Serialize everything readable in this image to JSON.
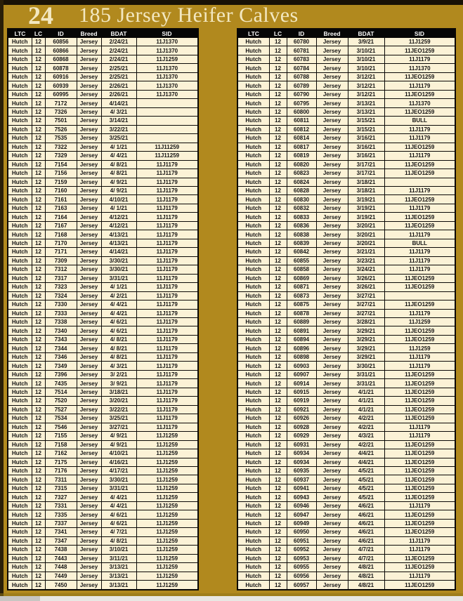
{
  "page": {
    "number": "24",
    "title": "185 Jersey Heifer Calves"
  },
  "columns": [
    "LTC",
    "LC",
    "ID",
    "Breed",
    "BDAT",
    "SID"
  ],
  "colors": {
    "background_gold": "#B1891E",
    "cell_cream": "#FBF2D6",
    "border_black": "#0A0806",
    "header_bg": "#060606",
    "header_text": "#F8F8F8",
    "title_text": "#F3E8C1"
  },
  "left_table": {
    "rows": [
      [
        "Hutch",
        "12",
        "60856",
        "Jersey",
        "2/24/21",
        "11J1370"
      ],
      [
        "Hutch",
        "12",
        "60866",
        "Jersey",
        "2/24/21",
        "11J1370"
      ],
      [
        "Hutch",
        "12",
        "60868",
        "Jersey",
        "2/24/21",
        "11J1259"
      ],
      [
        "Hutch",
        "12",
        "60878",
        "Jersey",
        "2/25/21",
        "11J1370"
      ],
      [
        "Hutch",
        "12",
        "60916",
        "Jersey",
        "2/25/21",
        "11J1370"
      ],
      [
        "Hutch",
        "12",
        "60939",
        "Jersey",
        "2/26/21",
        "11J1370"
      ],
      [
        "Hutch",
        "12",
        "60995",
        "Jersey",
        "2/26/21",
        "11J1370"
      ],
      [
        "Hutch",
        "12",
        "7172",
        "Jersey",
        "4/14/21",
        ""
      ],
      [
        "Hutch",
        "12",
        "7326",
        "Jersey",
        "4/ 3/21",
        ""
      ],
      [
        "Hutch",
        "12",
        "7501",
        "Jersey",
        "3/14/21",
        ""
      ],
      [
        "Hutch",
        "12",
        "7526",
        "Jersey",
        "3/22/21",
        ""
      ],
      [
        "Hutch",
        "12",
        "7535",
        "Jersey",
        "3/25/21",
        ""
      ],
      [
        "Hutch",
        "12",
        "7322",
        "Jersey",
        "4/ 1/21",
        "11J11259"
      ],
      [
        "Hutch",
        "12",
        "7329",
        "Jersey",
        "4/ 4/21",
        "11J11259"
      ],
      [
        "Hutch",
        "12",
        "7154",
        "Jersey",
        "4/ 8/21",
        "11J1179"
      ],
      [
        "Hutch",
        "12",
        "7156",
        "Jersey",
        "4/ 8/21",
        "11J1179"
      ],
      [
        "Hutch",
        "12",
        "7159",
        "Jersey",
        "4/ 9/21",
        "11J1179"
      ],
      [
        "Hutch",
        "12",
        "7160",
        "Jersey",
        "4/ 9/21",
        "11J1179"
      ],
      [
        "Hutch",
        "12",
        "7161",
        "Jersey",
        "4/10/21",
        "11J1179"
      ],
      [
        "Hutch",
        "12",
        "7163",
        "Jersey",
        "4/ 1/21",
        "11J1179"
      ],
      [
        "Hutch",
        "12",
        "7164",
        "Jersey",
        "4/12/21",
        "11J1179"
      ],
      [
        "Hutch",
        "12",
        "7167",
        "Jersey",
        "4/12/21",
        "11J1179"
      ],
      [
        "Hutch",
        "12",
        "7168",
        "Jersey",
        "4/13/21",
        "11J1179"
      ],
      [
        "Hutch",
        "12",
        "7170",
        "Jersey",
        "4/13/21",
        "11J1179"
      ],
      [
        "Hutch",
        "12",
        "7171",
        "Jersey",
        "4/14/21",
        "11J1179"
      ],
      [
        "Hutch",
        "12",
        "7309",
        "Jersey",
        "3/30/21",
        "11J1179"
      ],
      [
        "Hutch",
        "12",
        "7312",
        "Jersey",
        "3/30/21",
        "11J1179"
      ],
      [
        "Hutch",
        "12",
        "7317",
        "Jersey",
        "3/31/21",
        "11J1179"
      ],
      [
        "Hutch",
        "12",
        "7323",
        "Jersey",
        "4/ 1/21",
        "11J1179"
      ],
      [
        "Hutch",
        "12",
        "7324",
        "Jersey",
        "4/ 2/21",
        "11J1179"
      ],
      [
        "Hutch",
        "12",
        "7330",
        "Jersey",
        "4/ 4/21",
        "11J1179"
      ],
      [
        "Hutch",
        "12",
        "7333",
        "Jersey",
        "4/ 4/21",
        "11J1179"
      ],
      [
        "Hutch",
        "12",
        "7338",
        "Jersey",
        "4/ 6/21",
        "11J1179"
      ],
      [
        "Hutch",
        "12",
        "7340",
        "Jersey",
        "4/ 6/21",
        "11J1179"
      ],
      [
        "Hutch",
        "12",
        "7343",
        "Jersey",
        "4/ 8/21",
        "11J1179"
      ],
      [
        "Hutch",
        "12",
        "7344",
        "Jersey",
        "4/ 8/21",
        "11J1179"
      ],
      [
        "Hutch",
        "12",
        "7346",
        "Jersey",
        "4/ 8/21",
        "11J1179"
      ],
      [
        "Hutch",
        "12",
        "7349",
        "Jersey",
        "4/ 3/21",
        "11J1179"
      ],
      [
        "Hutch",
        "12",
        "7396",
        "Jersey",
        "3/ 2/21",
        "11J1179"
      ],
      [
        "Hutch",
        "12",
        "7435",
        "Jersey",
        "3/ 9/21",
        "11J1179"
      ],
      [
        "Hutch",
        "12",
        "7514",
        "Jersey",
        "3/18/21",
        "11J1179"
      ],
      [
        "Hutch",
        "12",
        "7520",
        "Jersey",
        "3/20/21",
        "11J1179"
      ],
      [
        "Hutch",
        "12",
        "7527",
        "Jersey",
        "3/22/21",
        "11J1179"
      ],
      [
        "Hutch",
        "12",
        "7534",
        "Jersey",
        "3/25/21",
        "11J1179"
      ],
      [
        "Hutch",
        "12",
        "7546",
        "Jersey",
        "3/27/21",
        "11J1179"
      ],
      [
        "Hutch",
        "12",
        "7155",
        "Jersey",
        "4/ 9/21",
        "11J1259"
      ],
      [
        "Hutch",
        "12",
        "7158",
        "Jersey",
        "4/ 9/21",
        "11J1259"
      ],
      [
        "Hutch",
        "12",
        "7162",
        "Jersey",
        "4/10/21",
        "11J1259"
      ],
      [
        "Hutch",
        "12",
        "7175",
        "Jersey",
        "4/16/21",
        "11J1259"
      ],
      [
        "Hutch",
        "12",
        "7176",
        "Jersey",
        "4/17/21",
        "11J1259"
      ],
      [
        "Hutch",
        "12",
        "7311",
        "Jersey",
        "3/30/21",
        "11J1259"
      ],
      [
        "Hutch",
        "12",
        "7315",
        "Jersey",
        "3/31/21",
        "11J1259"
      ],
      [
        "Hutch",
        "12",
        "7327",
        "Jersey",
        "4/ 4/21",
        "11J1259"
      ],
      [
        "Hutch",
        "12",
        "7331",
        "Jersey",
        "4/ 4/21",
        "11J1259"
      ],
      [
        "Hutch",
        "12",
        "7335",
        "Jersey",
        "4/ 6/21",
        "11J1259"
      ],
      [
        "Hutch",
        "12",
        "7337",
        "Jersey",
        "4/ 6/21",
        "11J1259"
      ],
      [
        "Hutch",
        "12",
        "7341",
        "Jersey",
        "4/ 7/21",
        "11J1259"
      ],
      [
        "Hutch",
        "12",
        "7347",
        "Jersey",
        "4/ 8/21",
        "11J1259"
      ],
      [
        "Hutch",
        "12",
        "7438",
        "Jersey",
        "3/10/21",
        "11J1259"
      ],
      [
        "Hutch",
        "12",
        "7443",
        "Jersey",
        "3/11/21",
        "11J1259"
      ],
      [
        "Hutch",
        "12",
        "7448",
        "Jersey",
        "3/13/21",
        "11J1259"
      ],
      [
        "Hutch",
        "12",
        "7449",
        "Jersey",
        "3/13/21",
        "11J1259"
      ],
      [
        "Hutch",
        "12",
        "7450",
        "Jersey",
        "3/13/21",
        "11J1259"
      ]
    ]
  },
  "right_table": {
    "rows": [
      [
        "Hutch",
        "12",
        "60780",
        "Jersey",
        "3/9/21",
        "11J1259"
      ],
      [
        "Hutch",
        "12",
        "60781",
        "Jersey",
        "3/10/21",
        "11JEO1259"
      ],
      [
        "Hutch",
        "12",
        "60783",
        "Jersey",
        "3/10/21",
        "11J1179"
      ],
      [
        "Hutch",
        "12",
        "60784",
        "Jersey",
        "3/10/21",
        "11J1370"
      ],
      [
        "Hutch",
        "12",
        "60788",
        "Jersey",
        "3/12/21",
        "11JEO1259"
      ],
      [
        "Hutch",
        "12",
        "60789",
        "Jersey",
        "3/12/21",
        "11J1179"
      ],
      [
        "Hutch",
        "12",
        "60790",
        "Jersey",
        "3/12/21",
        "11JEO1259"
      ],
      [
        "Hutch",
        "12",
        "60795",
        "Jersey",
        "3/13/21",
        "11J1370"
      ],
      [
        "Hutch",
        "12",
        "60800",
        "Jersey",
        "3/13/21",
        "11JEO1259"
      ],
      [
        "Hutch",
        "12",
        "60811",
        "Jersey",
        "3/15/21",
        "BULL"
      ],
      [
        "Hutch",
        "12",
        "60812",
        "Jersey",
        "3/15/21",
        "11J1179"
      ],
      [
        "Hutch",
        "12",
        "60814",
        "Jersey",
        "3/16/21",
        "11J1179"
      ],
      [
        "Hutch",
        "12",
        "60817",
        "Jersey",
        "3/16/21",
        "11JEO1259"
      ],
      [
        "Hutch",
        "12",
        "60819",
        "Jersey",
        "3/16/21",
        "11J1179"
      ],
      [
        "Hutch",
        "12",
        "60820",
        "Jersey",
        "3/17/21",
        "11JEO1259"
      ],
      [
        "Hutch",
        "12",
        "60823",
        "Jersey",
        "3/17/21",
        "11JEO1259"
      ],
      [
        "Hutch",
        "12",
        "60824",
        "Jersey",
        "3/18/21",
        ""
      ],
      [
        "Hutch",
        "12",
        "60828",
        "Jersey",
        "3/18/21",
        "11J1179"
      ],
      [
        "Hutch",
        "12",
        "60830",
        "Jersey",
        "3/19/21",
        "11JEO1259"
      ],
      [
        "Hutch",
        "12",
        "60832",
        "Jersey",
        "3/19/21",
        "11J1179"
      ],
      [
        "Hutch",
        "12",
        "60833",
        "Jersey",
        "3/19/21",
        "11JEO1259"
      ],
      [
        "Hutch",
        "12",
        "60836",
        "Jersey",
        "3/20/21",
        "11JEO1259"
      ],
      [
        "Hutch",
        "12",
        "60838",
        "Jersey",
        "3/20/21",
        "11J1179"
      ],
      [
        "Hutch",
        "12",
        "60839",
        "Jersey",
        "3/20/21",
        "BULL"
      ],
      [
        "Hutch",
        "12",
        "60842",
        "Jersey",
        "3/21/21",
        "11J1179"
      ],
      [
        "Hutch",
        "12",
        "60855",
        "Jersey",
        "3/23/21",
        "11J1179"
      ],
      [
        "Hutch",
        "12",
        "60858",
        "Jersey",
        "3/24/21",
        "11J1179"
      ],
      [
        "Hutch",
        "12",
        "60869",
        "Jersey",
        "3/26/21",
        "11JEO1259"
      ],
      [
        "Hutch",
        "12",
        "60871",
        "Jersey",
        "3/26/21",
        "11JEO1259"
      ],
      [
        "Hutch",
        "12",
        "60873",
        "Jersey",
        "3/27/21",
        ""
      ],
      [
        "Hutch",
        "12",
        "60875",
        "Jersey",
        "3/27/21",
        "11JEO1259"
      ],
      [
        "Hutch",
        "12",
        "60878",
        "Jersey",
        "3/27/21",
        "11J1179"
      ],
      [
        "Hutch",
        "12",
        "60889",
        "Jersey",
        "3/28/21",
        "11J1259"
      ],
      [
        "Hutch",
        "12",
        "60891",
        "Jersey",
        "3/29/21",
        "11JEO1259"
      ],
      [
        "Hutch",
        "12",
        "60894",
        "Jersey",
        "3/29/21",
        "11JEO1259"
      ],
      [
        "Hutch",
        "12",
        "60896",
        "Jersey",
        "3/29/21",
        "11J1259"
      ],
      [
        "Hutch",
        "12",
        "60898",
        "Jersey",
        "3/29/21",
        "11J1179"
      ],
      [
        "Hutch",
        "12",
        "60903",
        "Jersey",
        "3/30/21",
        "11J1179"
      ],
      [
        "Hutch",
        "12",
        "60907",
        "Jersey",
        "3/31/21",
        "11JEO1259"
      ],
      [
        "Hutch",
        "12",
        "60914",
        "Jersey",
        "3/31/21",
        "11JEO1259"
      ],
      [
        "Hutch",
        "12",
        "60915",
        "Jersey",
        "4/1/21",
        "11JEO1259"
      ],
      [
        "Hutch",
        "12",
        "60919",
        "Jersey",
        "4/1/21",
        "11JEO1259"
      ],
      [
        "Hutch",
        "12",
        "60921",
        "Jersey",
        "4/1/21",
        "11JEO1259"
      ],
      [
        "Hutch",
        "12",
        "60926",
        "Jersey",
        "4/2/21",
        "11JEO1259"
      ],
      [
        "Hutch",
        "12",
        "60928",
        "Jersey",
        "4/2/21",
        "11J1179"
      ],
      [
        "Hutch",
        "12",
        "60929",
        "Jersey",
        "4/3/21",
        "11J1179"
      ],
      [
        "Hutch",
        "12",
        "60931",
        "Jersey",
        "4/2/21",
        "11JEO1259"
      ],
      [
        "Hutch",
        "12",
        "60934",
        "Jersey",
        "4/4/21",
        "11JEO1259"
      ],
      [
        "Hutch",
        "12",
        "60934",
        "Jersey",
        "4/4/21",
        "11JEO1259"
      ],
      [
        "Hutch",
        "12",
        "60935",
        "Jersey",
        "4/5/21",
        "11JEO1259"
      ],
      [
        "Hutch",
        "12",
        "60937",
        "Jersey",
        "4/5/21",
        "11JEO1259"
      ],
      [
        "Hutch",
        "12",
        "60941",
        "Jersey",
        "4/5/21",
        "11JEO1259"
      ],
      [
        "Hutch",
        "12",
        "60943",
        "Jersey",
        "4/5/21",
        "11JEO1259"
      ],
      [
        "Hutch",
        "12",
        "60946",
        "Jersey",
        "4/6/21",
        "11J1179"
      ],
      [
        "Hutch",
        "12",
        "60947",
        "Jersey",
        "4/6/21",
        "11JEO1259"
      ],
      [
        "Hutch",
        "12",
        "60949",
        "Jersey",
        "4/6/21",
        "11JEO1259"
      ],
      [
        "Hutch",
        "12",
        "60950",
        "Jersey",
        "4/6/21",
        "11JEO1259"
      ],
      [
        "Hutch",
        "12",
        "60951",
        "Jersey",
        "4/6/21",
        "11J1179"
      ],
      [
        "Hutch",
        "12",
        "60952",
        "Jersey",
        "4/7/21",
        "11J1179"
      ],
      [
        "Hutch",
        "12",
        "60953",
        "Jersey",
        "4/7/21",
        "11JEO1259"
      ],
      [
        "Hutch",
        "12",
        "60955",
        "Jersey",
        "4/8/21",
        "11JEO1259"
      ],
      [
        "Hutch",
        "12",
        "60956",
        "Jersey",
        "4/8/21",
        "11J1179"
      ],
      [
        "Hutch",
        "12",
        "60957",
        "Jersey",
        "4/8/21",
        "11JEO1259"
      ]
    ]
  }
}
